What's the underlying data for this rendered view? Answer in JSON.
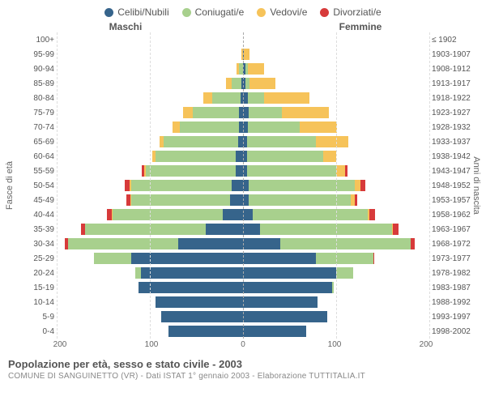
{
  "legend": [
    {
      "label": "Celibi/Nubili",
      "color": "#36648b"
    },
    {
      "label": "Coniugati/e",
      "color": "#a8d08d"
    },
    {
      "label": "Vedovi/e",
      "color": "#f6c35a"
    },
    {
      "label": "Divorziati/e",
      "color": "#d73a3a"
    }
  ],
  "headers": {
    "left": "Maschi",
    "right": "Femmine"
  },
  "ylabels": {
    "left": "Fasce di età",
    "right": "Anni di nascita"
  },
  "xaxis": {
    "max": 200,
    "ticks": [
      200,
      100,
      0,
      100,
      200
    ]
  },
  "title": "Popolazione per età, sesso e stato civile - 2003",
  "subtitle": "COMUNE DI SANGUINETTO (VR) - Dati ISTAT 1° gennaio 2003 - Elaborazione TUTTITALIA.IT",
  "colors": {
    "celibi": "#36648b",
    "coniugati": "#a8d08d",
    "vedovi": "#f6c35a",
    "divorziati": "#d73a3a",
    "grid": "#dddddd",
    "center": "#aaaaaa",
    "bg": "#ffffff"
  },
  "rows": [
    {
      "age": "100+",
      "birth": "≤ 1902",
      "m": {
        "c": 0,
        "co": 0,
        "v": 0,
        "d": 0
      },
      "f": {
        "c": 0,
        "co": 0,
        "v": 0,
        "d": 0
      }
    },
    {
      "age": "95-99",
      "birth": "1903-1907",
      "m": {
        "c": 0,
        "co": 0,
        "v": 2,
        "d": 0
      },
      "f": {
        "c": 1,
        "co": 0,
        "v": 6,
        "d": 0
      }
    },
    {
      "age": "90-94",
      "birth": "1908-1912",
      "m": {
        "c": 0,
        "co": 4,
        "v": 3,
        "d": 0
      },
      "f": {
        "c": 3,
        "co": 2,
        "v": 18,
        "d": 0
      }
    },
    {
      "age": "85-89",
      "birth": "1913-1917",
      "m": {
        "c": 2,
        "co": 10,
        "v": 6,
        "d": 0
      },
      "f": {
        "c": 3,
        "co": 4,
        "v": 28,
        "d": 0
      }
    },
    {
      "age": "80-84",
      "birth": "1918-1922",
      "m": {
        "c": 3,
        "co": 30,
        "v": 10,
        "d": 0
      },
      "f": {
        "c": 5,
        "co": 18,
        "v": 48,
        "d": 0
      }
    },
    {
      "age": "75-79",
      "birth": "1923-1927",
      "m": {
        "c": 4,
        "co": 50,
        "v": 10,
        "d": 0
      },
      "f": {
        "c": 6,
        "co": 36,
        "v": 50,
        "d": 0
      }
    },
    {
      "age": "70-74",
      "birth": "1928-1932",
      "m": {
        "c": 4,
        "co": 64,
        "v": 8,
        "d": 0
      },
      "f": {
        "c": 5,
        "co": 56,
        "v": 40,
        "d": 0
      }
    },
    {
      "age": "65-69",
      "birth": "1933-1937",
      "m": {
        "c": 5,
        "co": 80,
        "v": 5,
        "d": 0
      },
      "f": {
        "c": 4,
        "co": 74,
        "v": 35,
        "d": 0
      }
    },
    {
      "age": "60-64",
      "birth": "1938-1942",
      "m": {
        "c": 8,
        "co": 86,
        "v": 3,
        "d": 0
      },
      "f": {
        "c": 4,
        "co": 82,
        "v": 14,
        "d": 0
      }
    },
    {
      "age": "55-59",
      "birth": "1943-1947",
      "m": {
        "c": 8,
        "co": 96,
        "v": 2,
        "d": 3
      },
      "f": {
        "c": 4,
        "co": 96,
        "v": 10,
        "d": 2
      }
    },
    {
      "age": "50-54",
      "birth": "1948-1952",
      "m": {
        "c": 12,
        "co": 108,
        "v": 2,
        "d": 5
      },
      "f": {
        "c": 6,
        "co": 114,
        "v": 6,
        "d": 5
      }
    },
    {
      "age": "45-49",
      "birth": "1953-1957",
      "m": {
        "c": 14,
        "co": 106,
        "v": 1,
        "d": 4
      },
      "f": {
        "c": 6,
        "co": 110,
        "v": 4,
        "d": 3
      }
    },
    {
      "age": "40-44",
      "birth": "1958-1962",
      "m": {
        "c": 22,
        "co": 118,
        "v": 1,
        "d": 5
      },
      "f": {
        "c": 10,
        "co": 124,
        "v": 2,
        "d": 6
      }
    },
    {
      "age": "35-39",
      "birth": "1963-1967",
      "m": {
        "c": 40,
        "co": 130,
        "v": 0,
        "d": 4
      },
      "f": {
        "c": 18,
        "co": 142,
        "v": 1,
        "d": 6
      }
    },
    {
      "age": "30-34",
      "birth": "1968-1972",
      "m": {
        "c": 70,
        "co": 118,
        "v": 0,
        "d": 3
      },
      "f": {
        "c": 40,
        "co": 140,
        "v": 0,
        "d": 4
      }
    },
    {
      "age": "25-29",
      "birth": "1973-1977",
      "m": {
        "c": 120,
        "co": 40,
        "v": 0,
        "d": 0
      },
      "f": {
        "c": 78,
        "co": 62,
        "v": 0,
        "d": 1
      }
    },
    {
      "age": "20-24",
      "birth": "1978-1982",
      "m": {
        "c": 110,
        "co": 6,
        "v": 0,
        "d": 0
      },
      "f": {
        "c": 100,
        "co": 18,
        "v": 0,
        "d": 0
      }
    },
    {
      "age": "15-19",
      "birth": "1983-1987",
      "m": {
        "c": 112,
        "co": 0,
        "v": 0,
        "d": 0
      },
      "f": {
        "c": 96,
        "co": 1,
        "v": 0,
        "d": 0
      }
    },
    {
      "age": "10-14",
      "birth": "1988-1992",
      "m": {
        "c": 94,
        "co": 0,
        "v": 0,
        "d": 0
      },
      "f": {
        "c": 80,
        "co": 0,
        "v": 0,
        "d": 0
      }
    },
    {
      "age": "5-9",
      "birth": "1993-1997",
      "m": {
        "c": 88,
        "co": 0,
        "v": 0,
        "d": 0
      },
      "f": {
        "c": 90,
        "co": 0,
        "v": 0,
        "d": 0
      }
    },
    {
      "age": "0-4",
      "birth": "1998-2002",
      "m": {
        "c": 80,
        "co": 0,
        "v": 0,
        "d": 0
      },
      "f": {
        "c": 68,
        "co": 0,
        "v": 0,
        "d": 0
      }
    }
  ]
}
